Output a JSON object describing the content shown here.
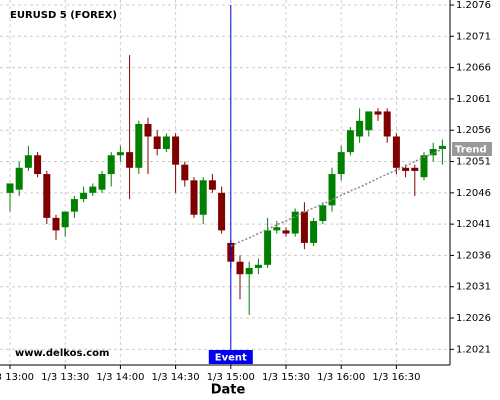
{
  "chart_data": {
    "type": "candlestick",
    "title": "EURUSD 5 (FOREX)",
    "watermark": "www.delkos.com",
    "x_label": "Date",
    "categories": [
      "1/3 13:00",
      null,
      null,
      null,
      null,
      null,
      "1/3 13:30",
      null,
      null,
      null,
      null,
      null,
      "1/3 14:00",
      null,
      null,
      null,
      null,
      null,
      "1/3 14:30",
      null,
      null,
      null,
      null,
      null,
      "1/3 15:00",
      null,
      null,
      null,
      null,
      null,
      "1/3 15:30",
      null,
      null,
      null,
      null,
      null,
      "1/3 16:00",
      null,
      null,
      null,
      null,
      null,
      "1/3 16:30",
      null,
      null,
      null,
      null,
      null
    ],
    "open": [
      1.2046,
      1.20465,
      1.205,
      1.2052,
      1.2049,
      1.2042,
      1.20405,
      1.2043,
      1.2045,
      1.2046,
      1.20465,
      1.2049,
      1.2052,
      1.20525,
      1.205,
      1.2057,
      1.2055,
      1.2053,
      1.2055,
      1.20505,
      1.2048,
      1.20425,
      1.2048,
      1.2046,
      1.2038,
      1.2035,
      1.2033,
      1.2034,
      1.20345,
      1.204,
      1.204,
      1.20395,
      1.2043,
      1.2038,
      1.20415,
      1.2044,
      1.2049,
      1.20525,
      1.2055,
      1.2056,
      1.2059,
      1.2059,
      1.2055,
      1.205,
      1.205,
      1.20485,
      1.2052,
      1.2053
    ],
    "high": [
      1.2047,
      1.2051,
      1.20535,
      1.20525,
      1.20495,
      1.20425,
      1.2043,
      1.20455,
      1.2047,
      1.20475,
      1.20495,
      1.20525,
      1.20535,
      1.2068,
      1.20575,
      1.2058,
      1.2056,
      1.20555,
      1.20555,
      1.2051,
      1.20485,
      1.20485,
      1.2049,
      1.2047,
      1.20385,
      1.2036,
      1.2035,
      1.20355,
      1.2042,
      1.20415,
      1.20405,
      1.20435,
      1.20445,
      1.2042,
      1.20445,
      1.205,
      1.20535,
      1.20565,
      1.20595,
      1.2059,
      1.20595,
      1.20595,
      1.20555,
      1.20505,
      1.20505,
      1.20525,
      1.2054,
      1.20545
    ],
    "low": [
      1.2043,
      1.20455,
      1.20495,
      1.20485,
      1.2041,
      1.20385,
      1.2039,
      1.2042,
      1.20445,
      1.20455,
      1.2046,
      1.2047,
      1.2051,
      1.2045,
      1.2049,
      1.2049,
      1.2052,
      1.20525,
      1.2046,
      1.2047,
      1.2042,
      1.2041,
      1.2046,
      1.20395,
      1.2034,
      1.2029,
      1.20265,
      1.2033,
      1.2034,
      1.20395,
      1.2039,
      1.2039,
      1.2037,
      1.20375,
      1.2041,
      1.2043,
      1.2048,
      1.2052,
      1.2054,
      1.2055,
      1.20575,
      1.2054,
      1.2049,
      1.20485,
      1.20455,
      1.2048,
      1.2051,
      1.20505
    ],
    "close": [
      1.20475,
      1.205,
      1.2052,
      1.2049,
      1.2042,
      1.204,
      1.2043,
      1.2045,
      1.2046,
      1.2047,
      1.2049,
      1.2052,
      1.20525,
      1.205,
      1.2057,
      1.2055,
      1.2053,
      1.2055,
      1.20505,
      1.2048,
      1.20425,
      1.2048,
      1.20465,
      1.204,
      1.2035,
      1.2033,
      1.2034,
      1.20345,
      1.204,
      1.20405,
      1.20395,
      1.2043,
      1.2038,
      1.20415,
      1.2044,
      1.2049,
      1.20525,
      1.2056,
      1.20575,
      1.2059,
      1.20585,
      1.2055,
      1.205,
      1.20495,
      1.20495,
      1.2052,
      1.2053,
      1.20535
    ],
    "up_color": "#008000",
    "down_color": "#800000",
    "trend": {
      "name": "Trend",
      "color": "#888888",
      "values": [
        null,
        null,
        null,
        null,
        null,
        null,
        null,
        null,
        null,
        null,
        null,
        null,
        null,
        null,
        null,
        null,
        null,
        null,
        null,
        null,
        null,
        null,
        null,
        null,
        1.20375,
        1.20382,
        1.20388,
        1.20395,
        1.20402,
        1.20409,
        1.20415,
        1.20422,
        1.20429,
        1.20436,
        1.20442,
        1.20449,
        1.20456,
        1.20463,
        1.20469,
        1.20476,
        1.20483,
        1.2049,
        1.20496,
        1.20503,
        1.2051,
        1.20517,
        1.20523,
        1.2053
      ]
    },
    "event": {
      "label": "Event",
      "at": "1/3 15:00",
      "color": "#0000ee"
    },
    "ylim": [
      1.20185,
      1.20768
    ],
    "yticks": [
      1.2021,
      1.2026,
      1.2031,
      1.2036,
      1.2041,
      1.2046,
      1.2051,
      1.2056,
      1.2061,
      1.2066,
      1.2071,
      1.2076
    ],
    "grid": true
  }
}
